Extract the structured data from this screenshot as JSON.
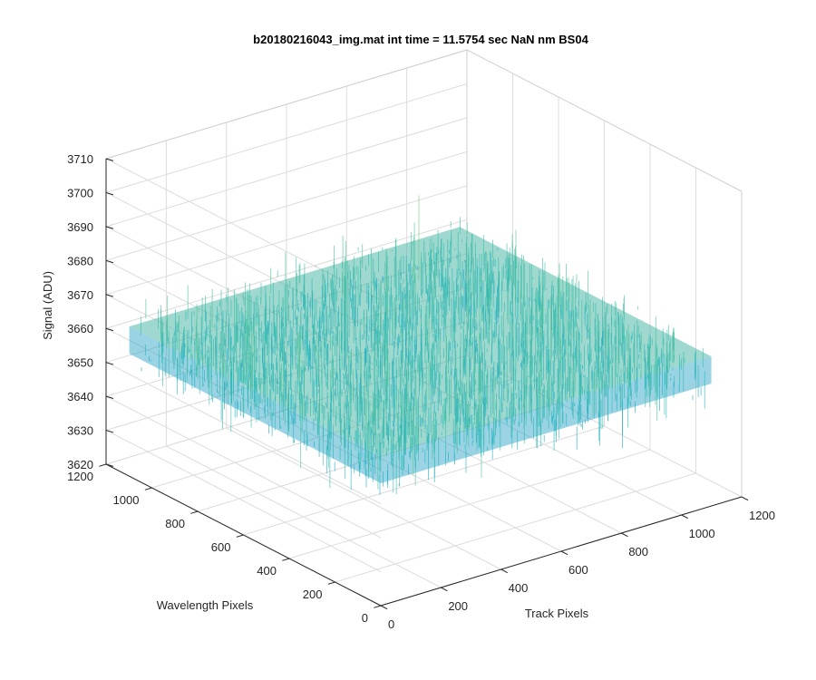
{
  "chart_data": {
    "type": "surface",
    "title": "b20180216043_img.mat int time = 11.5754 sec  NaN nm BS04",
    "xlabel": "Track Pixels",
    "ylabel": "Wavelength Pixels",
    "zlabel": "Signal (ADU)",
    "xlim": [
      0,
      1200
    ],
    "ylim": [
      0,
      1200
    ],
    "zlim": [
      3620,
      3710
    ],
    "x_ticks": [
      "0",
      "200",
      "400",
      "600",
      "800",
      "1000",
      "1200"
    ],
    "y_ticks": [
      "0",
      "200",
      "400",
      "600",
      "800",
      "1000",
      "1200"
    ],
    "z_ticks": [
      "3620",
      "3630",
      "3640",
      "3650",
      "3660",
      "3670",
      "3680",
      "3690",
      "3700",
      "3710"
    ],
    "grid": true,
    "surface": {
      "x_range": [
        1,
        1100
      ],
      "y_range": [
        1,
        1100
      ],
      "mean_signal": 3660,
      "min_signal": 3625,
      "max_signal": 3700,
      "colormap": "parula"
    },
    "colors": {
      "low": "#0072BD",
      "mid": "#1FB2C3",
      "high": "#F2E64A",
      "axis": "#262626",
      "grid": "#DCDCDC"
    }
  }
}
